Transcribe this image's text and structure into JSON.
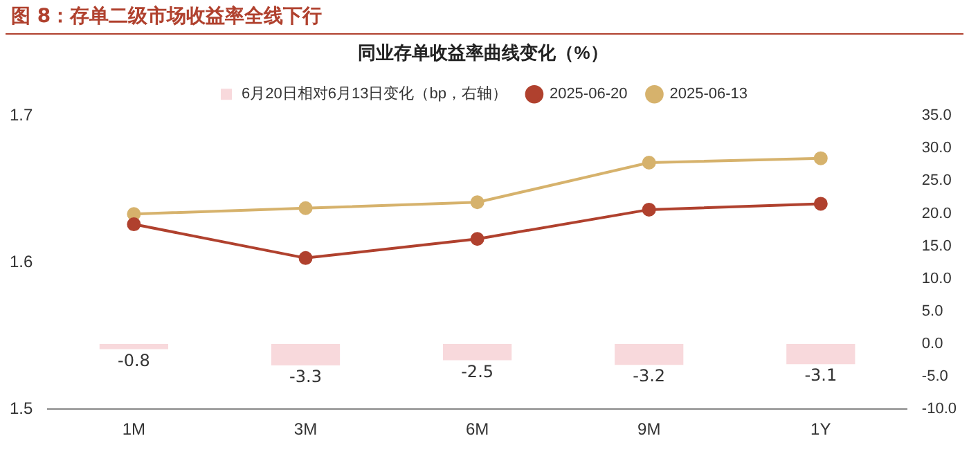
{
  "chart_data": {
    "type": "line",
    "title": "图 8：存单二级市场收益率全线下行",
    "subtitle": "同业存单收益率曲线变化（%）",
    "categories": [
      "1M",
      "3M",
      "6M",
      "9M",
      "1Y"
    ],
    "series": [
      {
        "name": "6月20日相对6月13日变化（bp，右轴）",
        "type": "bar",
        "axis": "y2",
        "color": "#f8d9dc",
        "values": [
          -0.8,
          -3.3,
          -2.5,
          -3.2,
          -3.1
        ],
        "value_labels": [
          "-0.8",
          "-3.3",
          "-2.5",
          "-3.2",
          "-3.1"
        ]
      },
      {
        "name": "2025-06-20",
        "color": "#b0412e",
        "values": [
          1.626,
          1.603,
          1.616,
          1.636,
          1.64
        ]
      },
      {
        "name": "2025-06-13",
        "color": "#d6b26c",
        "values": [
          1.633,
          1.637,
          1.641,
          1.668,
          1.671
        ]
      }
    ],
    "ylim": [
      1.5,
      1.7
    ],
    "yticks": [
      1.5,
      1.6,
      1.7
    ],
    "y2lim": [
      -10,
      35
    ],
    "y2ticks": [
      {
        "value": -10,
        "label": "-10.0"
      },
      {
        "value": -5,
        "label": "-5.0"
      },
      {
        "value": 0,
        "label": "0.0"
      },
      {
        "value": 5,
        "label": "5.0"
      },
      {
        "value": 10,
        "label": "10.0"
      },
      {
        "value": 15,
        "label": "15.0"
      },
      {
        "value": 20,
        "label": "20.0"
      },
      {
        "value": 25,
        "label": "25.0"
      },
      {
        "value": 30,
        "label": "30.0"
      },
      {
        "value": 35,
        "label": "35.0"
      }
    ],
    "grid": false,
    "legend": "top",
    "marker": "circle",
    "line_style": "solid"
  }
}
